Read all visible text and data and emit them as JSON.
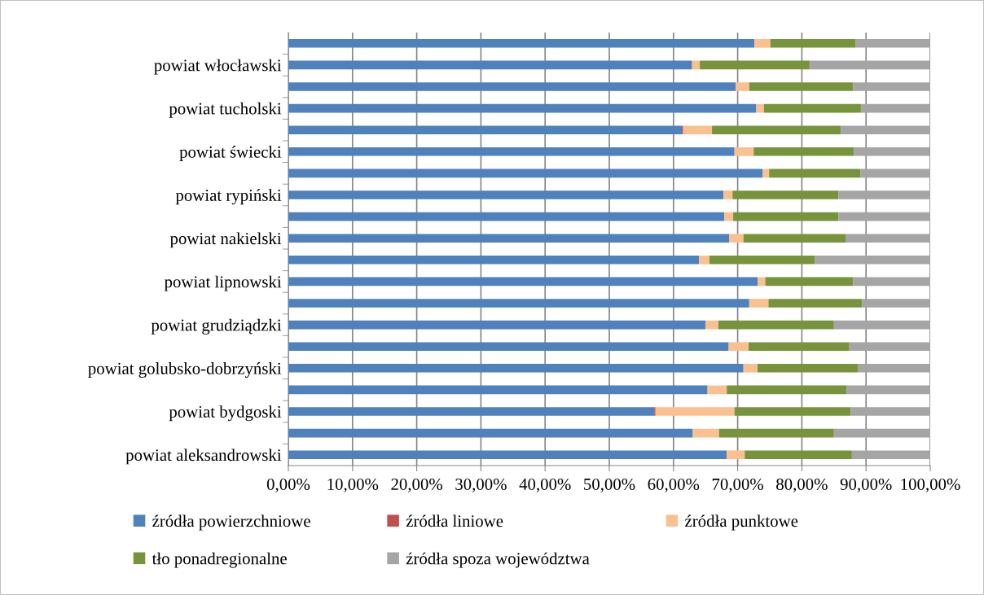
{
  "chart_data": {
    "type": "bar",
    "orientation": "horizontal",
    "stacked": true,
    "categories": [
      null,
      "powiat włocławski",
      null,
      "powiat tucholski",
      null,
      "powiat świecki",
      null,
      "powiat rypiński",
      null,
      "powiat nakielski",
      null,
      "powiat lipnowski",
      null,
      "powiat grudziądzki",
      null,
      "powiat golubsko-dobrzyński",
      null,
      "powiat bydgoski",
      null,
      "powiat aleksandrowski"
    ],
    "series": [
      {
        "name": "źródła powierzchniowe",
        "color": "#4f81bd",
        "values": [
          72.6,
          62.9,
          69.7,
          72.9,
          61.3,
          69.5,
          73.9,
          67.8,
          67.9,
          68.7,
          64.0,
          73.1,
          71.8,
          65.0,
          68.6,
          70.9,
          65.3,
          57.0,
          63.0,
          68.3
        ]
      },
      {
        "name": "źródła liniowe",
        "color": "#c0504d",
        "values": [
          0,
          null,
          0,
          0,
          0.2,
          null,
          0,
          0,
          0,
          0,
          0,
          0,
          0,
          0,
          0,
          0,
          0,
          0.2,
          0,
          0
        ]
      },
      {
        "name": "źródła punktowe",
        "color": "#fac090",
        "values": [
          2.5,
          1.2,
          2.1,
          1.2,
          4.5,
          3.0,
          1.0,
          1.4,
          1.4,
          2.2,
          1.6,
          1.2,
          3.0,
          2.0,
          3.1,
          2.2,
          3.0,
          12.3,
          4.1,
          2.8
        ]
      },
      {
        "name": "tło ponadregionalne",
        "color": "#77933c",
        "values": [
          13.3,
          17.1,
          16.2,
          15.1,
          20.1,
          15.6,
          14.2,
          16.5,
          16.4,
          15.9,
          16.4,
          13.7,
          14.6,
          18.0,
          15.7,
          15.6,
          18.7,
          18.1,
          17.9,
          16.7
        ]
      },
      {
        "name": "źródła spoza województwa",
        "color": "#a5a5a5",
        "values": [
          11.6,
          18.7,
          12.0,
          10.8,
          13.9,
          11.8,
          10.9,
          14.3,
          14.3,
          13.2,
          18.0,
          12.0,
          10.6,
          15.0,
          12.6,
          11.3,
          13.0,
          12.4,
          15.0,
          12.2
        ]
      }
    ],
    "xlim": [
      0,
      100
    ],
    "xticks": [
      {
        "value": 0,
        "label": "0,00%"
      },
      {
        "value": 10,
        "label": "10,00%"
      },
      {
        "value": 20,
        "label": "20,00%"
      },
      {
        "value": 30,
        "label": "30,00%"
      },
      {
        "value": 40,
        "label": "40,00%"
      },
      {
        "value": 50,
        "label": "50,00%"
      },
      {
        "value": 60,
        "label": "60,00%"
      },
      {
        "value": 70,
        "label": "70,00%"
      },
      {
        "value": 80,
        "label": "80,00%"
      },
      {
        "value": 90,
        "label": "90,00%"
      },
      {
        "value": 100,
        "label": "100,00%"
      }
    ],
    "grid": "x",
    "legend": "bottom"
  }
}
